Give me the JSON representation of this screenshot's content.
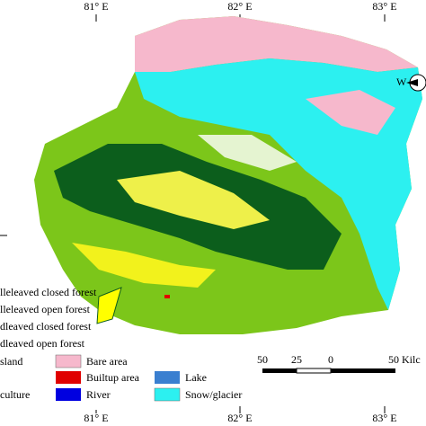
{
  "map": {
    "top_labels": [
      "81° E",
      "82° E",
      "83° E"
    ],
    "bottom_labels": [
      "81° E",
      "82° E",
      "83° E"
    ],
    "legend": [
      "lleleaved closed forest",
      "lleleaved open forest",
      "dleaved closed forest",
      "dleaved open forest",
      "sland",
      "Bare area",
      "Builtup area",
      "Lake",
      "culture",
      "River",
      "Snow/glacier"
    ],
    "scale_labels": [
      "50",
      "25",
      "0",
      "50 Kilc"
    ],
    "compass": "W"
  }
}
